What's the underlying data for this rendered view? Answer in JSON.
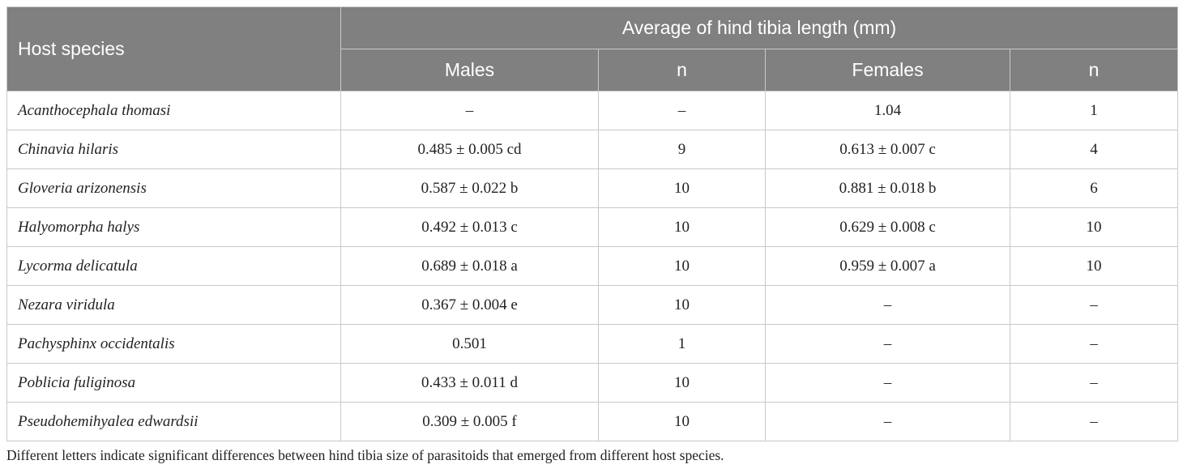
{
  "table": {
    "header": {
      "host_species": "Host species",
      "group_title": "Average of hind tibia length (mm)",
      "males": "Males",
      "n1": "n",
      "females": "Females",
      "n2": "n"
    },
    "rows": [
      {
        "species": "Acanthocephala thomasi",
        "males": "–",
        "n_males": "–",
        "females": "1.04",
        "n_females": "1"
      },
      {
        "species": "Chinavia hilaris",
        "males": "0.485 ± 0.005 cd",
        "n_males": "9",
        "females": "0.613 ± 0.007 c",
        "n_females": "4"
      },
      {
        "species": "Gloveria arizonensis",
        "males": "0.587 ± 0.022 b",
        "n_males": "10",
        "females": "0.881 ± 0.018 b",
        "n_females": "6"
      },
      {
        "species": "Halyomorpha halys",
        "males": "0.492 ± 0.013 c",
        "n_males": "10",
        "females": "0.629 ± 0.008 c",
        "n_females": "10"
      },
      {
        "species": "Lycorma delicatula",
        "males": "0.689 ± 0.018 a",
        "n_males": "10",
        "females": "0.959 ± 0.007 a",
        "n_females": "10"
      },
      {
        "species": "Nezara viridula",
        "males": "0.367 ± 0.004 e",
        "n_males": "10",
        "females": "–",
        "n_females": "–"
      },
      {
        "species": "Pachysphinx occidentalis",
        "males": "0.501",
        "n_males": "1",
        "females": "–",
        "n_females": "–"
      },
      {
        "species": "Poblicia fuliginosa",
        "males": "0.433 ± 0.011 d",
        "n_males": "10",
        "females": "–",
        "n_females": "–"
      },
      {
        "species": "Pseudohemihyalea edwardsii",
        "males": "0.309 ± 0.005 f",
        "n_males": "10",
        "females": "–",
        "n_females": "–"
      }
    ],
    "footnote": "Different letters indicate significant differences between hind tibia size of parasitoids that emerged from different host species."
  }
}
